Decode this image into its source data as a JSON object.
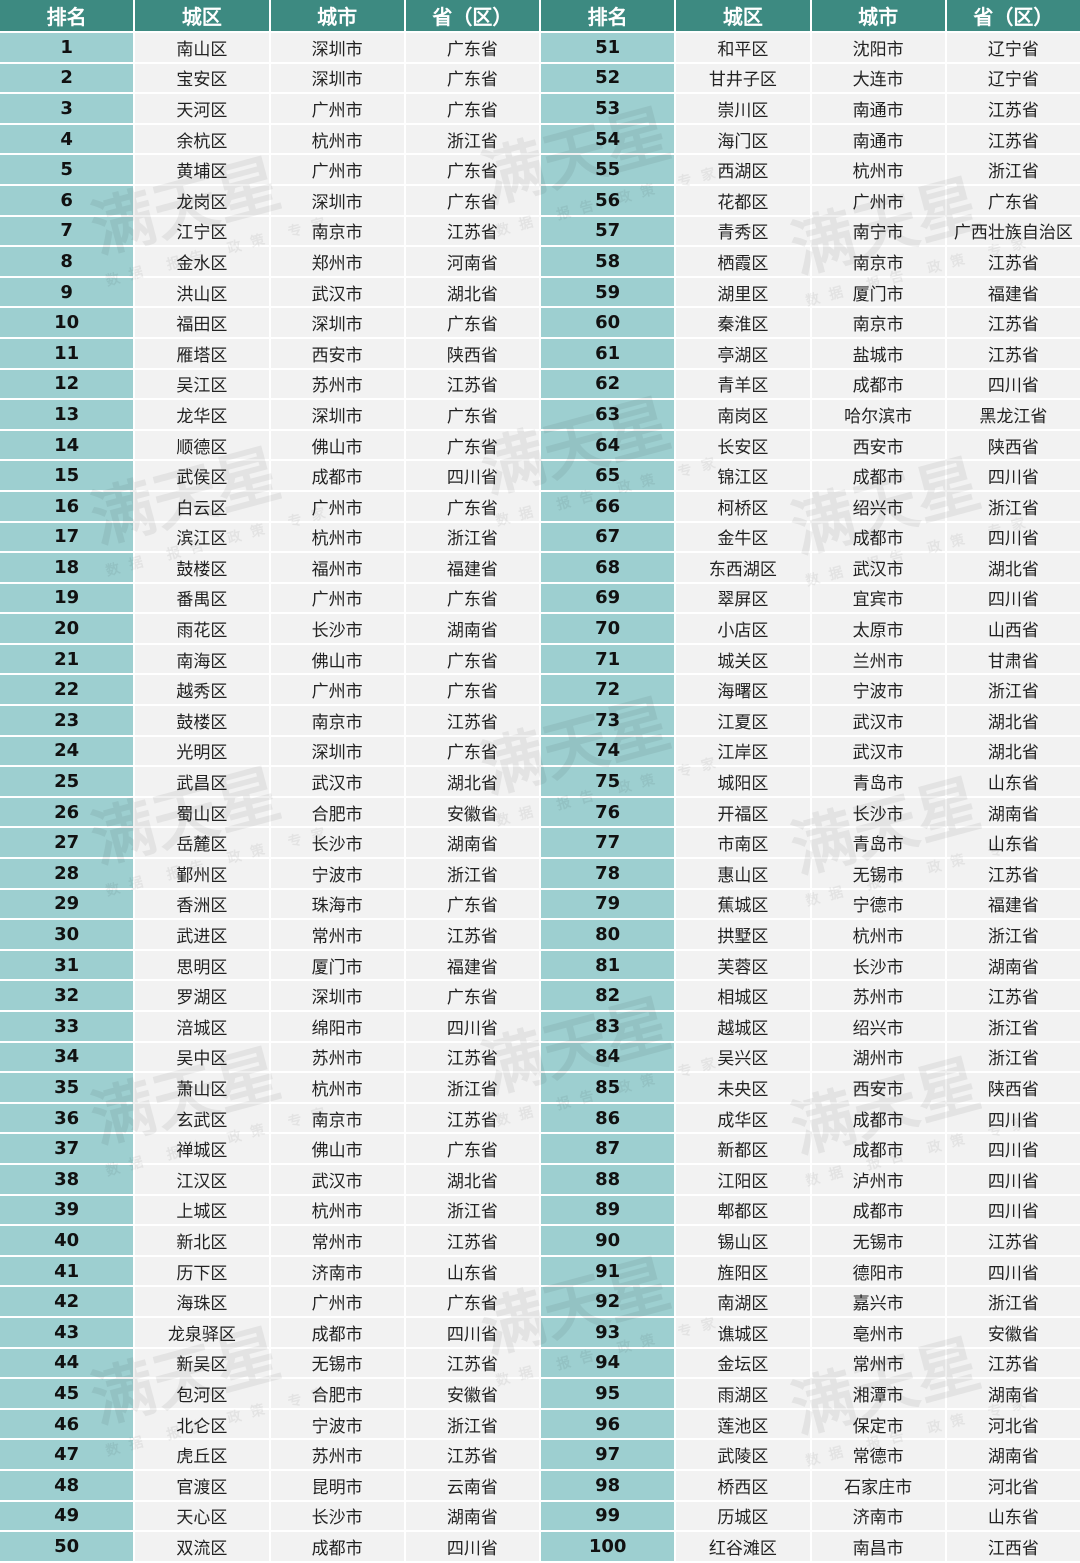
{
  "headers": [
    "排名",
    "城区",
    "城市",
    "省（区）",
    "排名",
    "城区",
    "城市",
    "省（区）"
  ],
  "colors": {
    "header_bg": "#3d8a81",
    "rank_bg": "#9dcfd0",
    "cell_bg": "#f2f2f2"
  },
  "watermark": {
    "title": "满天星",
    "subtitle": "数据 报告 政策 专家"
  },
  "left": [
    [
      "1",
      "南山区",
      "深圳市",
      "广东省"
    ],
    [
      "2",
      "宝安区",
      "深圳市",
      "广东省"
    ],
    [
      "3",
      "天河区",
      "广州市",
      "广东省"
    ],
    [
      "4",
      "余杭区",
      "杭州市",
      "浙江省"
    ],
    [
      "5",
      "黄埔区",
      "广州市",
      "广东省"
    ],
    [
      "6",
      "龙岗区",
      "深圳市",
      "广东省"
    ],
    [
      "7",
      "江宁区",
      "南京市",
      "江苏省"
    ],
    [
      "8",
      "金水区",
      "郑州市",
      "河南省"
    ],
    [
      "9",
      "洪山区",
      "武汉市",
      "湖北省"
    ],
    [
      "10",
      "福田区",
      "深圳市",
      "广东省"
    ],
    [
      "11",
      "雁塔区",
      "西安市",
      "陕西省"
    ],
    [
      "12",
      "吴江区",
      "苏州市",
      "江苏省"
    ],
    [
      "13",
      "龙华区",
      "深圳市",
      "广东省"
    ],
    [
      "14",
      "顺德区",
      "佛山市",
      "广东省"
    ],
    [
      "15",
      "武侯区",
      "成都市",
      "四川省"
    ],
    [
      "16",
      "白云区",
      "广州市",
      "广东省"
    ],
    [
      "17",
      "滨江区",
      "杭州市",
      "浙江省"
    ],
    [
      "18",
      "鼓楼区",
      "福州市",
      "福建省"
    ],
    [
      "19",
      "番禺区",
      "广州市",
      "广东省"
    ],
    [
      "20",
      "雨花区",
      "长沙市",
      "湖南省"
    ],
    [
      "21",
      "南海区",
      "佛山市",
      "广东省"
    ],
    [
      "22",
      "越秀区",
      "广州市",
      "广东省"
    ],
    [
      "23",
      "鼓楼区",
      "南京市",
      "江苏省"
    ],
    [
      "24",
      "光明区",
      "深圳市",
      "广东省"
    ],
    [
      "25",
      "武昌区",
      "武汉市",
      "湖北省"
    ],
    [
      "26",
      "蜀山区",
      "合肥市",
      "安徽省"
    ],
    [
      "27",
      "岳麓区",
      "长沙市",
      "湖南省"
    ],
    [
      "28",
      "鄞州区",
      "宁波市",
      "浙江省"
    ],
    [
      "29",
      "香洲区",
      "珠海市",
      "广东省"
    ],
    [
      "30",
      "武进区",
      "常州市",
      "江苏省"
    ],
    [
      "31",
      "思明区",
      "厦门市",
      "福建省"
    ],
    [
      "32",
      "罗湖区",
      "深圳市",
      "广东省"
    ],
    [
      "33",
      "涪城区",
      "绵阳市",
      "四川省"
    ],
    [
      "34",
      "吴中区",
      "苏州市",
      "江苏省"
    ],
    [
      "35",
      "萧山区",
      "杭州市",
      "浙江省"
    ],
    [
      "36",
      "玄武区",
      "南京市",
      "江苏省"
    ],
    [
      "37",
      "禅城区",
      "佛山市",
      "广东省"
    ],
    [
      "38",
      "江汉区",
      "武汉市",
      "湖北省"
    ],
    [
      "39",
      "上城区",
      "杭州市",
      "浙江省"
    ],
    [
      "40",
      "新北区",
      "常州市",
      "江苏省"
    ],
    [
      "41",
      "历下区",
      "济南市",
      "山东省"
    ],
    [
      "42",
      "海珠区",
      "广州市",
      "广东省"
    ],
    [
      "43",
      "龙泉驿区",
      "成都市",
      "四川省"
    ],
    [
      "44",
      "新吴区",
      "无锡市",
      "江苏省"
    ],
    [
      "45",
      "包河区",
      "合肥市",
      "安徽省"
    ],
    [
      "46",
      "北仑区",
      "宁波市",
      "浙江省"
    ],
    [
      "47",
      "虎丘区",
      "苏州市",
      "江苏省"
    ],
    [
      "48",
      "官渡区",
      "昆明市",
      "云南省"
    ],
    [
      "49",
      "天心区",
      "长沙市",
      "湖南省"
    ],
    [
      "50",
      "双流区",
      "成都市",
      "四川省"
    ]
  ],
  "right": [
    [
      "51",
      "和平区",
      "沈阳市",
      "辽宁省"
    ],
    [
      "52",
      "甘井子区",
      "大连市",
      "辽宁省"
    ],
    [
      "53",
      "崇川区",
      "南通市",
      "江苏省"
    ],
    [
      "54",
      "海门区",
      "南通市",
      "江苏省"
    ],
    [
      "55",
      "西湖区",
      "杭州市",
      "浙江省"
    ],
    [
      "56",
      "花都区",
      "广州市",
      "广东省"
    ],
    [
      "57",
      "青秀区",
      "南宁市",
      "广西壮族自治区"
    ],
    [
      "58",
      "栖霞区",
      "南京市",
      "江苏省"
    ],
    [
      "59",
      "湖里区",
      "厦门市",
      "福建省"
    ],
    [
      "60",
      "秦淮区",
      "南京市",
      "江苏省"
    ],
    [
      "61",
      "亭湖区",
      "盐城市",
      "江苏省"
    ],
    [
      "62",
      "青羊区",
      "成都市",
      "四川省"
    ],
    [
      "63",
      "南岗区",
      "哈尔滨市",
      "黑龙江省"
    ],
    [
      "64",
      "长安区",
      "西安市",
      "陕西省"
    ],
    [
      "65",
      "锦江区",
      "成都市",
      "四川省"
    ],
    [
      "66",
      "柯桥区",
      "绍兴市",
      "浙江省"
    ],
    [
      "67",
      "金牛区",
      "成都市",
      "四川省"
    ],
    [
      "68",
      "东西湖区",
      "武汉市",
      "湖北省"
    ],
    [
      "69",
      "翠屏区",
      "宜宾市",
      "四川省"
    ],
    [
      "70",
      "小店区",
      "太原市",
      "山西省"
    ],
    [
      "71",
      "城关区",
      "兰州市",
      "甘肃省"
    ],
    [
      "72",
      "海曙区",
      "宁波市",
      "浙江省"
    ],
    [
      "73",
      "江夏区",
      "武汉市",
      "湖北省"
    ],
    [
      "74",
      "江岸区",
      "武汉市",
      "湖北省"
    ],
    [
      "75",
      "城阳区",
      "青岛市",
      "山东省"
    ],
    [
      "76",
      "开福区",
      "长沙市",
      "湖南省"
    ],
    [
      "77",
      "市南区",
      "青岛市",
      "山东省"
    ],
    [
      "78",
      "惠山区",
      "无锡市",
      "江苏省"
    ],
    [
      "79",
      "蕉城区",
      "宁德市",
      "福建省"
    ],
    [
      "80",
      "拱墅区",
      "杭州市",
      "浙江省"
    ],
    [
      "81",
      "芙蓉区",
      "长沙市",
      "湖南省"
    ],
    [
      "82",
      "相城区",
      "苏州市",
      "江苏省"
    ],
    [
      "83",
      "越城区",
      "绍兴市",
      "浙江省"
    ],
    [
      "84",
      "吴兴区",
      "湖州市",
      "浙江省"
    ],
    [
      "85",
      "未央区",
      "西安市",
      "陕西省"
    ],
    [
      "86",
      "成华区",
      "成都市",
      "四川省"
    ],
    [
      "87",
      "新都区",
      "成都市",
      "四川省"
    ],
    [
      "88",
      "江阳区",
      "泸州市",
      "四川省"
    ],
    [
      "89",
      "郫都区",
      "成都市",
      "四川省"
    ],
    [
      "90",
      "锡山区",
      "无锡市",
      "江苏省"
    ],
    [
      "91",
      "旌阳区",
      "德阳市",
      "四川省"
    ],
    [
      "92",
      "南湖区",
      "嘉兴市",
      "浙江省"
    ],
    [
      "93",
      "谯城区",
      "亳州市",
      "安徽省"
    ],
    [
      "94",
      "金坛区",
      "常州市",
      "江苏省"
    ],
    [
      "95",
      "雨湖区",
      "湘潭市",
      "湖南省"
    ],
    [
      "96",
      "莲池区",
      "保定市",
      "河北省"
    ],
    [
      "97",
      "武陵区",
      "常德市",
      "湖南省"
    ],
    [
      "98",
      "桥西区",
      "石家庄市",
      "河北省"
    ],
    [
      "99",
      "历城区",
      "济南市",
      "山东省"
    ],
    [
      "100",
      "红谷滩区",
      "南昌市",
      "江西省"
    ]
  ]
}
